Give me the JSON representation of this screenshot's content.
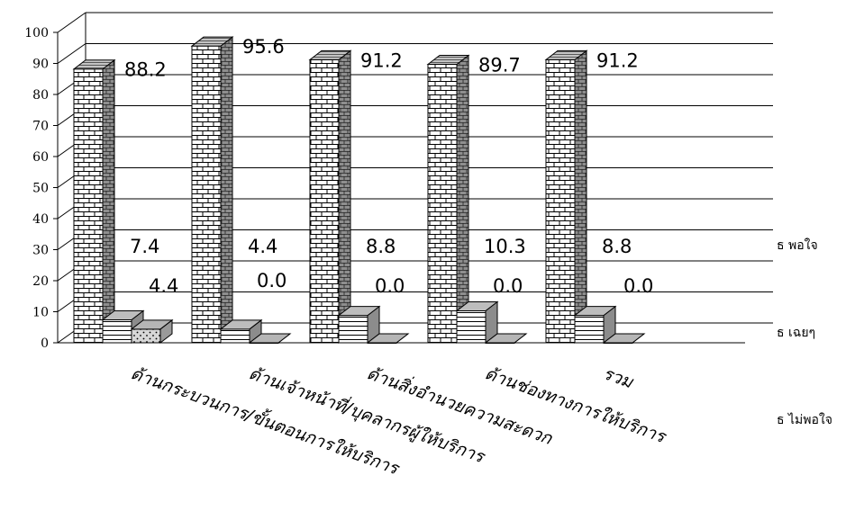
{
  "chart_data": {
    "type": "bar",
    "bar_style": "3d",
    "categories": [
      "ด้านกระบวนการ/ขั้นตอนการให้บริการ",
      "ด้านเจ้าหน้าที่/บุคลากรผู้ให้บริการ",
      "ด้านสิ่งอำนวยความสะดวก",
      "ด้านช่องทางการให้บริการ",
      "รวม"
    ],
    "series": [
      {
        "name": "ธ พอใจ",
        "values": [
          88.2,
          95.6,
          91.2,
          89.7,
          91.2
        ],
        "labels": [
          "88.2",
          "95.6",
          "91.2",
          "89.7",
          "91.2"
        ],
        "pattern": "brick"
      },
      {
        "name": "ธ เฉยๆ",
        "values": [
          7.4,
          4.4,
          8.8,
          10.3,
          8.8
        ],
        "labels": [
          "7.4",
          "4.4",
          "8.8",
          "10.3",
          "8.8"
        ],
        "pattern": "horizontal-lines"
      },
      {
        "name": "ธ ไม่พอใจ",
        "values": [
          4.4,
          0.0,
          0.0,
          0.0,
          0.0
        ],
        "labels": [
          "4.4",
          "0.0",
          "0.0",
          "0.0",
          "0.0"
        ],
        "pattern": "dotted"
      }
    ],
    "yticks": [
      "0",
      "10",
      "20",
      "30",
      "40",
      "50",
      "60",
      "70",
      "80",
      "90",
      "100"
    ],
    "ylim": [
      0,
      100
    ],
    "grid": true,
    "legend_position": "right",
    "colors": {
      "face": "#ffffff",
      "top": "#bdbdbd",
      "side": "#8c8c8c",
      "outline": "#000000",
      "grid": "#000000"
    }
  }
}
